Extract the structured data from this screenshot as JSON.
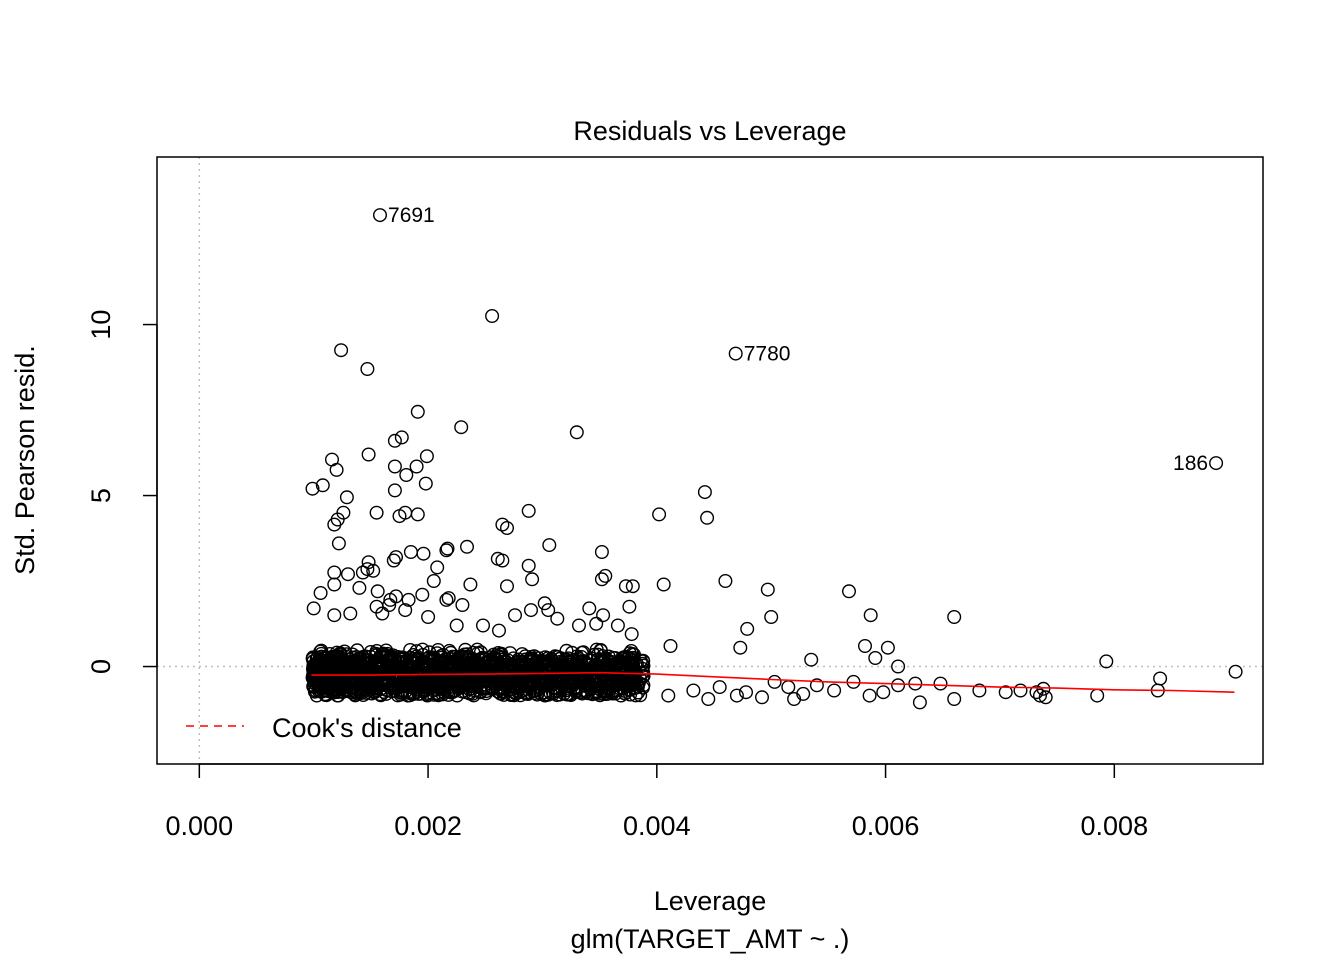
{
  "chart_data": {
    "type": "scatter",
    "title": "Residuals vs Leverage",
    "xlabel": "Leverage",
    "xlabel_sub": "glm(TARGET_AMT ~ .)",
    "ylabel": "Std. Pearson resid.",
    "xlim": [
      -0.00037,
      0.0093
    ],
    "ylim": [
      -2.85,
      14.9
    ],
    "x_ticks": [
      0.0,
      0.002,
      0.004,
      0.006,
      0.008
    ],
    "x_tick_labels": [
      "0.000",
      "0.002",
      "0.004",
      "0.006",
      "0.008"
    ],
    "y_ticks": [
      0,
      5,
      10
    ],
    "y_tick_labels": [
      "0",
      "5",
      "10"
    ],
    "reference_lines": {
      "x": 0,
      "y": 0,
      "style": "dotted",
      "color": "#bfbfbf"
    },
    "legend": {
      "position": "bottom-left",
      "entries": [
        {
          "label": "Cook's distance",
          "color": "#ff0000",
          "style": "dashed"
        }
      ]
    },
    "labeled_points": [
      {
        "label": "7691",
        "x": 0.00158,
        "y": 13.2,
        "side": "right"
      },
      {
        "label": "7780",
        "x": 0.00469,
        "y": 9.15,
        "side": "right"
      },
      {
        "label": "186",
        "x": 0.00889,
        "y": 5.95,
        "side": "left"
      }
    ],
    "outliers": [
      [
        0.00256,
        10.25
      ],
      [
        0.00124,
        9.25
      ],
      [
        0.00147,
        8.7
      ],
      [
        0.00191,
        7.45
      ],
      [
        0.00229,
        7.0
      ],
      [
        0.0033,
        6.85
      ],
      [
        0.00177,
        6.7
      ],
      [
        0.00171,
        6.6
      ],
      [
        0.00116,
        6.05
      ],
      [
        0.00148,
        6.2
      ],
      [
        0.00199,
        6.15
      ],
      [
        0.0012,
        5.75
      ],
      [
        0.00171,
        5.85
      ],
      [
        0.0019,
        5.85
      ],
      [
        0.00181,
        5.6
      ],
      [
        0.00198,
        5.35
      ],
      [
        0.00108,
        5.3
      ],
      [
        0.00099,
        5.2
      ],
      [
        0.00171,
        5.15
      ],
      [
        0.00129,
        4.95
      ],
      [
        0.00442,
        5.1
      ],
      [
        0.00402,
        4.45
      ],
      [
        0.00444,
        4.35
      ],
      [
        0.00126,
        4.5
      ],
      [
        0.00155,
        4.5
      ],
      [
        0.0018,
        4.5
      ],
      [
        0.00191,
        4.45
      ],
      [
        0.00175,
        4.4
      ],
      [
        0.00121,
        4.3
      ],
      [
        0.00118,
        4.15
      ],
      [
        0.00265,
        4.15
      ],
      [
        0.00269,
        4.05
      ],
      [
        0.00288,
        4.55
      ],
      [
        0.00122,
        3.6
      ],
      [
        0.00306,
        3.55
      ],
      [
        0.00234,
        3.5
      ],
      [
        0.00217,
        3.45
      ],
      [
        0.00216,
        3.4
      ],
      [
        0.00352,
        3.35
      ],
      [
        0.00185,
        3.35
      ],
      [
        0.00172,
        3.2
      ],
      [
        0.0017,
        3.1
      ],
      [
        0.00148,
        3.05
      ],
      [
        0.00196,
        3.3
      ],
      [
        0.00261,
        3.15
      ],
      [
        0.00265,
        3.1
      ],
      [
        0.00208,
        2.9
      ],
      [
        0.00147,
        2.85
      ],
      [
        0.00152,
        2.8
      ],
      [
        0.00143,
        2.75
      ],
      [
        0.00118,
        2.75
      ],
      [
        0.0013,
        2.7
      ],
      [
        0.00288,
        2.95
      ],
      [
        0.00355,
        2.65
      ],
      [
        0.00352,
        2.55
      ],
      [
        0.0046,
        2.5
      ],
      [
        0.00406,
        2.4
      ],
      [
        0.00373,
        2.35
      ],
      [
        0.00379,
        2.35
      ],
      [
        0.00497,
        2.25
      ],
      [
        0.00568,
        2.2
      ],
      [
        0.00205,
        2.5
      ],
      [
        0.00237,
        2.4
      ],
      [
        0.00269,
        2.35
      ],
      [
        0.00291,
        2.55
      ],
      [
        0.00118,
        2.4
      ],
      [
        0.00106,
        2.15
      ],
      [
        0.0014,
        2.3
      ],
      [
        0.00156,
        2.2
      ],
      [
        0.00167,
        1.95
      ],
      [
        0.00172,
        2.05
      ],
      [
        0.00183,
        1.95
      ],
      [
        0.00195,
        2.1
      ],
      [
        0.00216,
        1.95
      ],
      [
        0.00218,
        2.0
      ],
      [
        0.0023,
        1.8
      ],
      [
        0.00302,
        1.85
      ],
      [
        0.0029,
        1.65
      ],
      [
        0.00305,
        1.65
      ],
      [
        0.00341,
        1.7
      ],
      [
        0.00376,
        1.75
      ],
      [
        0.005,
        1.45
      ],
      [
        0.00587,
        1.5
      ],
      [
        0.0066,
        1.45
      ],
      [
        0.001,
        1.7
      ],
      [
        0.00118,
        1.5
      ],
      [
        0.00132,
        1.55
      ],
      [
        0.0016,
        1.55
      ],
      [
        0.0018,
        1.65
      ],
      [
        0.00155,
        1.75
      ],
      [
        0.00166,
        1.8
      ],
      [
        0.002,
        1.45
      ],
      [
        0.00225,
        1.2
      ],
      [
        0.00248,
        1.2
      ],
      [
        0.00262,
        1.05
      ],
      [
        0.00276,
        1.5
      ],
      [
        0.00313,
        1.4
      ],
      [
        0.00332,
        1.2
      ],
      [
        0.00347,
        1.25
      ],
      [
        0.00353,
        1.5
      ],
      [
        0.00366,
        1.2
      ],
      [
        0.00378,
        0.95
      ],
      [
        0.00412,
        0.6
      ],
      [
        0.00473,
        0.55
      ],
      [
        0.00479,
        1.1
      ],
      [
        0.00535,
        0.2
      ],
      [
        0.00582,
        0.6
      ],
      [
        0.00602,
        0.55
      ],
      [
        0.00591,
        0.25
      ],
      [
        0.00611,
        0.0
      ],
      [
        0.00793,
        0.15
      ],
      [
        0.00906,
        -0.15
      ],
      [
        0.0084,
        -0.35
      ]
    ],
    "cluster_note": "dense band of several thousand points between leverage 0.001 and 0.0038, residuals about -0.9 to 0.5",
    "tail_points": [
      [
        0.0041,
        -0.85
      ],
      [
        0.00432,
        -0.7
      ],
      [
        0.00455,
        -0.6
      ],
      [
        0.00478,
        -0.75
      ],
      [
        0.00492,
        -0.9
      ],
      [
        0.00503,
        -0.45
      ],
      [
        0.00515,
        -0.6
      ],
      [
        0.00528,
        -0.8
      ],
      [
        0.0054,
        -0.55
      ],
      [
        0.00555,
        -0.7
      ],
      [
        0.00572,
        -0.45
      ],
      [
        0.00586,
        -0.85
      ],
      [
        0.00598,
        -0.75
      ],
      [
        0.00611,
        -0.55
      ],
      [
        0.00626,
        -0.5
      ],
      [
        0.0063,
        -1.05
      ],
      [
        0.00648,
        -0.5
      ],
      [
        0.0066,
        -0.95
      ],
      [
        0.00682,
        -0.7
      ],
      [
        0.00705,
        -0.75
      ],
      [
        0.00718,
        -0.7
      ],
      [
        0.00732,
        -0.75
      ],
      [
        0.00738,
        -0.65
      ],
      [
        0.0074,
        -0.9
      ],
      [
        0.00735,
        -0.85
      ],
      [
        0.00785,
        -0.85
      ],
      [
        0.00838,
        -0.7
      ],
      [
        0.0052,
        -0.95
      ],
      [
        0.0047,
        -0.85
      ],
      [
        0.00445,
        -0.95
      ]
    ],
    "smoother": {
      "color": "#ff0000",
      "x": [
        0.00098,
        0.0015,
        0.002,
        0.0025,
        0.003,
        0.0035,
        0.004,
        0.0045,
        0.005,
        0.0055,
        0.006,
        0.0065,
        0.007,
        0.0075,
        0.008,
        0.0085,
        0.00905
      ],
      "y": [
        -0.25,
        -0.25,
        -0.23,
        -0.22,
        -0.2,
        -0.18,
        -0.22,
        -0.3,
        -0.38,
        -0.45,
        -0.5,
        -0.55,
        -0.6,
        -0.63,
        -0.68,
        -0.7,
        -0.75
      ]
    }
  }
}
